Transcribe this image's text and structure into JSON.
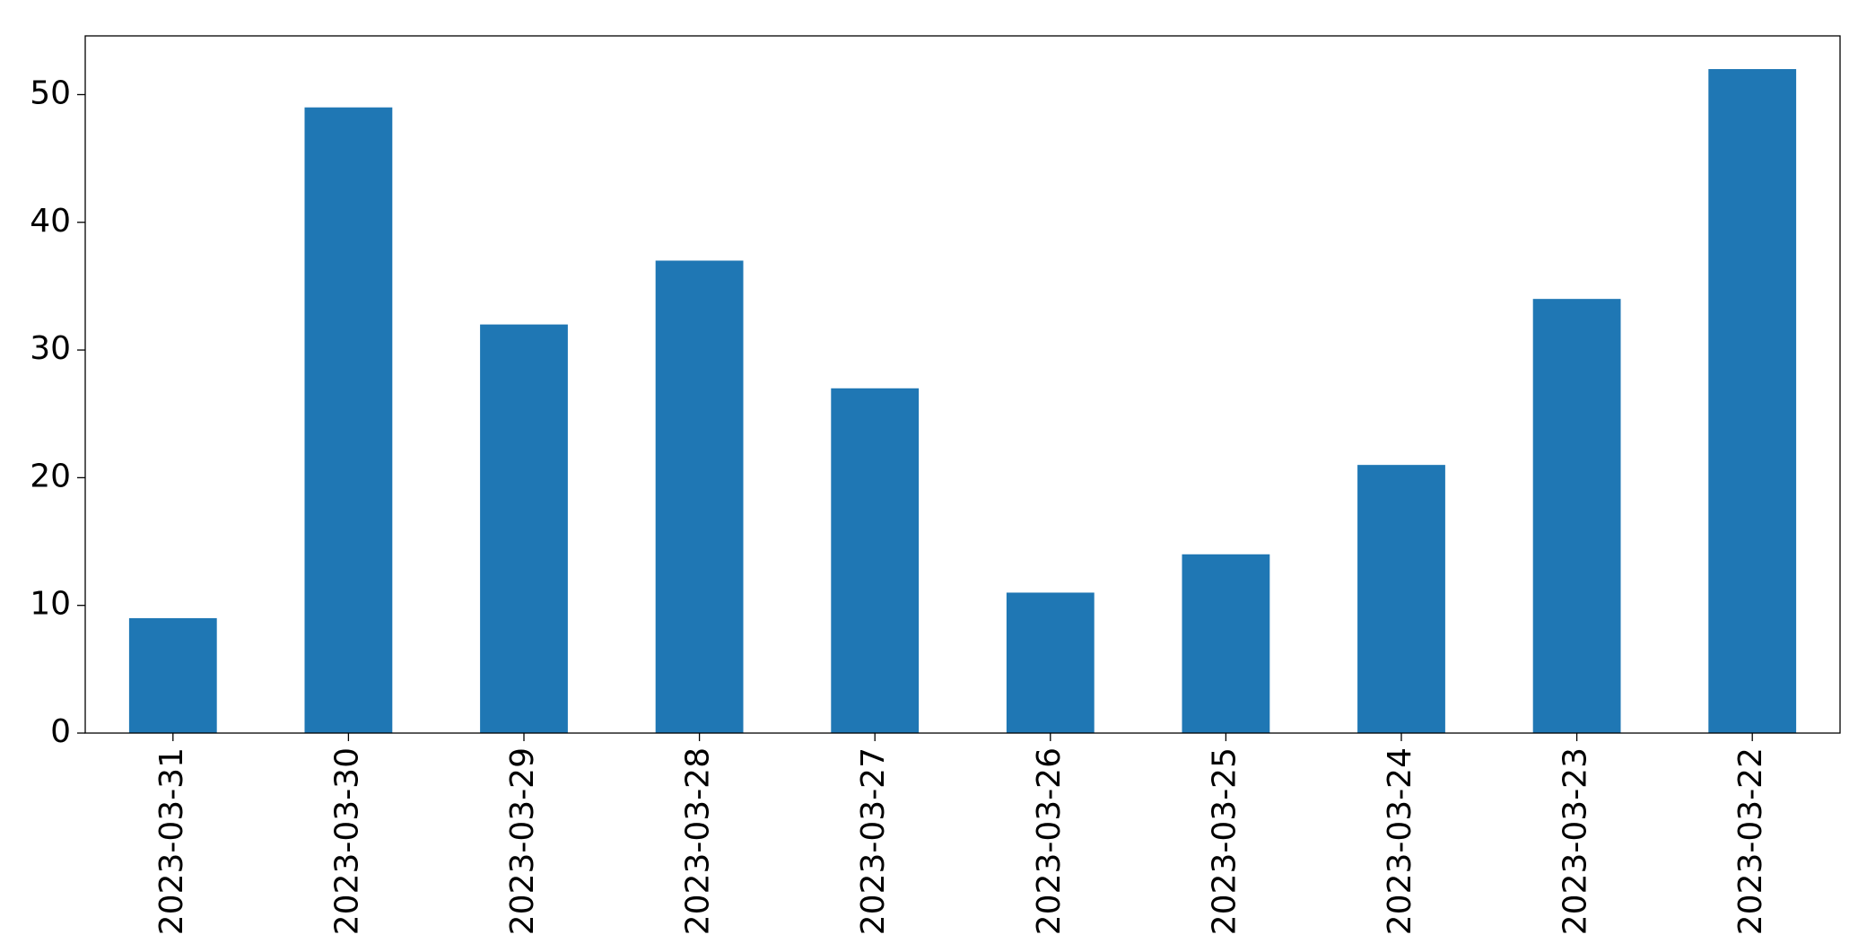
{
  "chart_data": {
    "type": "bar",
    "categories": [
      "2023-03-31",
      "2023-03-30",
      "2023-03-29",
      "2023-03-28",
      "2023-03-27",
      "2023-03-26",
      "2023-03-25",
      "2023-03-24",
      "2023-03-23",
      "2023-03-22"
    ],
    "values": [
      9,
      49,
      32,
      37,
      27,
      11,
      14,
      21,
      34,
      52
    ],
    "color": "#1f77b4",
    "ylim": [
      0,
      54.6
    ],
    "yticks": [
      0,
      10,
      20,
      30,
      40,
      50
    ],
    "grid": false
  }
}
